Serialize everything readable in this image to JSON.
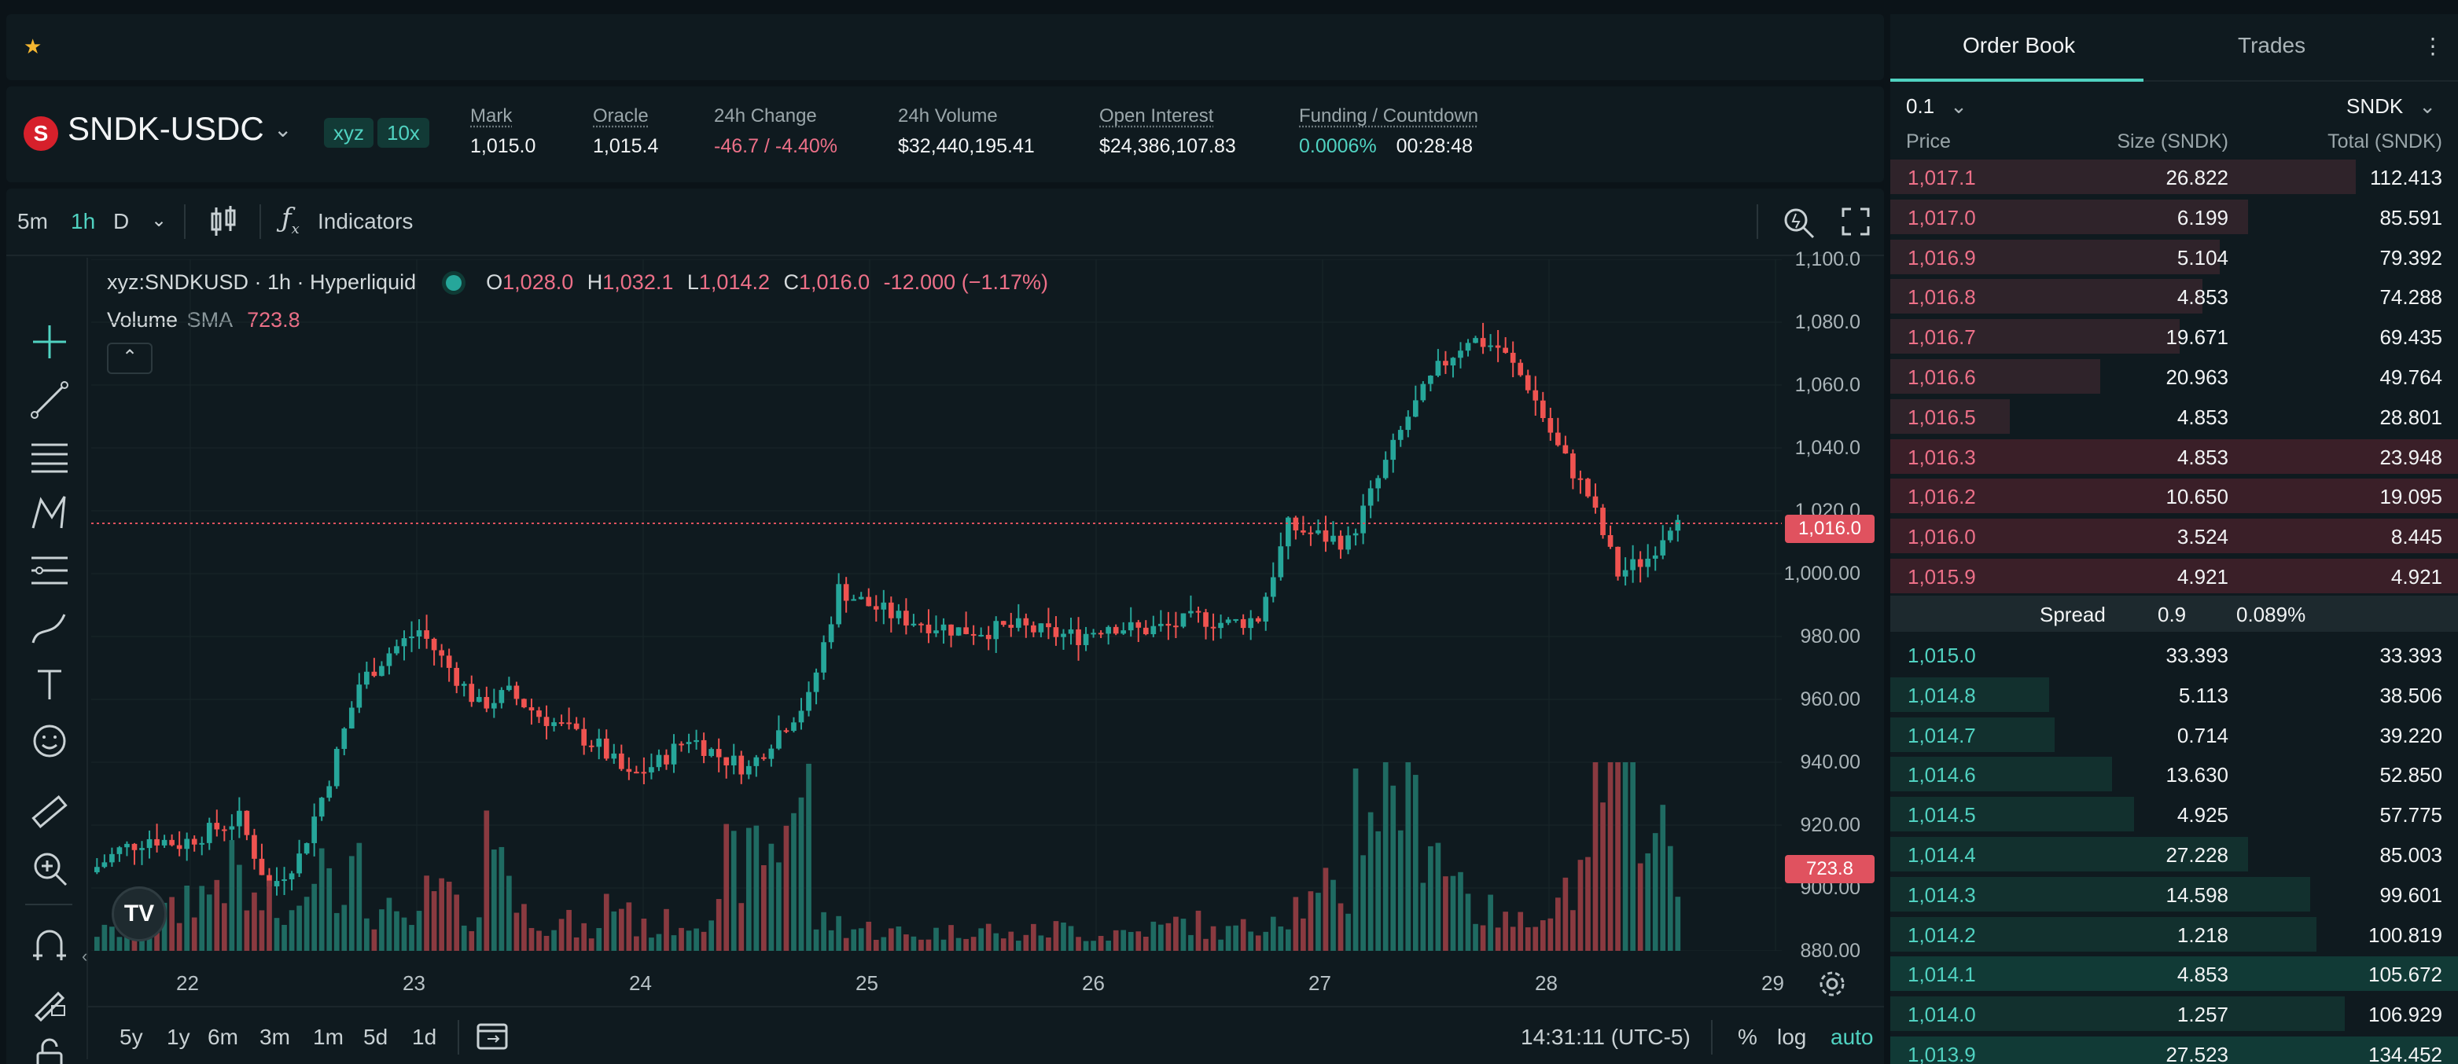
{
  "header": {
    "pair": "SNDK-USDC",
    "logo_letter": "S",
    "badges": [
      "xyz",
      "10x"
    ],
    "stats": [
      {
        "label": "Mark",
        "value": "1,015.0",
        "underline": true,
        "color": "neutral"
      },
      {
        "label": "Oracle",
        "value": "1,015.4",
        "underline": true,
        "color": "neutral"
      },
      {
        "label": "24h Change",
        "value": "-46.7 / -4.40%",
        "underline": false,
        "color": "red"
      },
      {
        "label": "24h Volume",
        "value": "$32,440,195.41",
        "underline": false,
        "color": "neutral"
      },
      {
        "label": "Open Interest",
        "value": "$24,386,107.83",
        "underline": true,
        "color": "neutral"
      }
    ],
    "funding": {
      "label": "Funding / Countdown",
      "rate": "0.0006%",
      "countdown": "00:28:48"
    }
  },
  "chart_toolbar": {
    "timeframes": [
      "5m",
      "1h",
      "D"
    ],
    "active_timeframe": "1h",
    "indicators_label": "Indicators"
  },
  "legend": {
    "symbol": "xyz:SNDKUSD · 1h · Hyperliquid",
    "o_label": "O",
    "o": "1,028.0",
    "h_label": "H",
    "h": "1,032.1",
    "l_label": "L",
    "l": "1,014.2",
    "c_label": "C",
    "c": "1,016.0",
    "change": "-12.000 (−1.17%)",
    "volume_label": "Volume",
    "sma_label": "SMA",
    "sma_value": "723.8"
  },
  "chart_data": {
    "type": "candlestick",
    "y_ticks": [
      "1,100.0",
      "1,080.0",
      "1,060.0",
      "1,040.0",
      "1,020.0",
      "1,000.00",
      "980.00",
      "960.00",
      "940.00",
      "920.00",
      "900.00",
      "880.00"
    ],
    "ylim": [
      880,
      1100
    ],
    "x_ticks": [
      "22",
      "23",
      "24",
      "25",
      "26",
      "27",
      "28",
      "29"
    ],
    "last_price": "1,016.0",
    "last_volume": "723.8",
    "path": [
      905,
      912,
      916,
      914,
      918,
      922,
      900,
      910,
      935,
      965,
      975,
      982,
      970,
      958,
      962,
      955,
      950,
      945,
      935,
      940,
      948,
      942,
      938,
      950,
      960,
      995,
      990,
      986,
      984,
      982,
      982,
      983,
      981,
      980,
      984,
      982,
      983,
      986,
      984,
      986,
      1015,
      1012,
      1010,
      1030,
      1050,
      1065,
      1075,
      1072,
      1060,
      1040,
      1025,
      1000,
      1005,
      1020
    ],
    "volume_path": [
      10,
      15,
      20,
      30,
      40,
      25,
      18,
      55,
      40,
      20,
      15,
      30,
      20,
      60,
      20,
      15,
      10,
      25,
      12,
      15,
      20,
      45,
      55,
      80,
      15,
      12,
      10,
      8,
      10,
      12,
      8,
      10,
      12,
      8,
      10,
      12,
      15,
      10,
      12,
      20,
      25,
      30,
      80,
      95,
      70,
      40,
      20,
      15,
      25,
      35,
      85,
      90,
      55,
      15
    ]
  },
  "bottom_bar": {
    "ranges": [
      "5y",
      "1y",
      "6m",
      "3m",
      "1m",
      "5d",
      "1d"
    ],
    "clock": "14:31:11 (UTC-5)",
    "percent": "%",
    "log": "log",
    "auto": "auto"
  },
  "order_book": {
    "tabs": [
      "Order Book",
      "Trades"
    ],
    "tick_size": "0.1",
    "unit": "SNDK",
    "columns": [
      "Price",
      "Size (SNDK)",
      "Total (SNDK)"
    ],
    "asks": [
      {
        "price": "1,017.1",
        "size": "26.822",
        "total": "112.413",
        "depth": 0.82
      },
      {
        "price": "1,017.0",
        "size": "6.199",
        "total": "85.591",
        "depth": 0.63
      },
      {
        "price": "1,016.9",
        "size": "5.104",
        "total": "79.392",
        "depth": 0.58
      },
      {
        "price": "1,016.8",
        "size": "4.853",
        "total": "74.288",
        "depth": 0.55
      },
      {
        "price": "1,016.7",
        "size": "19.671",
        "total": "69.435",
        "depth": 0.51
      },
      {
        "price": "1,016.6",
        "size": "20.963",
        "total": "49.764",
        "depth": 0.37
      },
      {
        "price": "1,016.5",
        "size": "4.853",
        "total": "28.801",
        "depth": 0.21
      },
      {
        "price": "1,016.3",
        "size": "4.853",
        "total": "23.948",
        "depth": 1.0
      },
      {
        "price": "1,016.2",
        "size": "10.650",
        "total": "19.095",
        "depth": 1.0
      },
      {
        "price": "1,016.0",
        "size": "3.524",
        "total": "8.445",
        "depth": 1.0
      },
      {
        "price": "1,015.9",
        "size": "4.921",
        "total": "4.921",
        "depth": 1.0
      }
    ],
    "spread": {
      "label": "Spread",
      "value": "0.9",
      "percent": "0.089%"
    },
    "bids": [
      {
        "price": "1,015.0",
        "size": "33.393",
        "total": "33.393",
        "depth": 0.0
      },
      {
        "price": "1,014.8",
        "size": "5.113",
        "total": "38.506",
        "depth": 0.28
      },
      {
        "price": "1,014.7",
        "size": "0.714",
        "total": "39.220",
        "depth": 0.29
      },
      {
        "price": "1,014.6",
        "size": "13.630",
        "total": "52.850",
        "depth": 0.39
      },
      {
        "price": "1,014.5",
        "size": "4.925",
        "total": "57.775",
        "depth": 0.43
      },
      {
        "price": "1,014.4",
        "size": "27.228",
        "total": "85.003",
        "depth": 0.63
      },
      {
        "price": "1,014.3",
        "size": "14.598",
        "total": "99.601",
        "depth": 0.74
      },
      {
        "price": "1,014.2",
        "size": "1.218",
        "total": "100.819",
        "depth": 0.75
      },
      {
        "price": "1,014.1",
        "size": "4.853",
        "total": "105.672",
        "depth": 1.0
      },
      {
        "price": "1,014.0",
        "size": "1.257",
        "total": "106.929",
        "depth": 0.8
      },
      {
        "price": "1,013.9",
        "size": "27.523",
        "total": "134.452",
        "depth": 1.0
      }
    ]
  },
  "colors": {
    "accent": "#50d2c1",
    "down": "#ed7088",
    "up": "#26a69a",
    "bg": "#0f1a1f"
  }
}
